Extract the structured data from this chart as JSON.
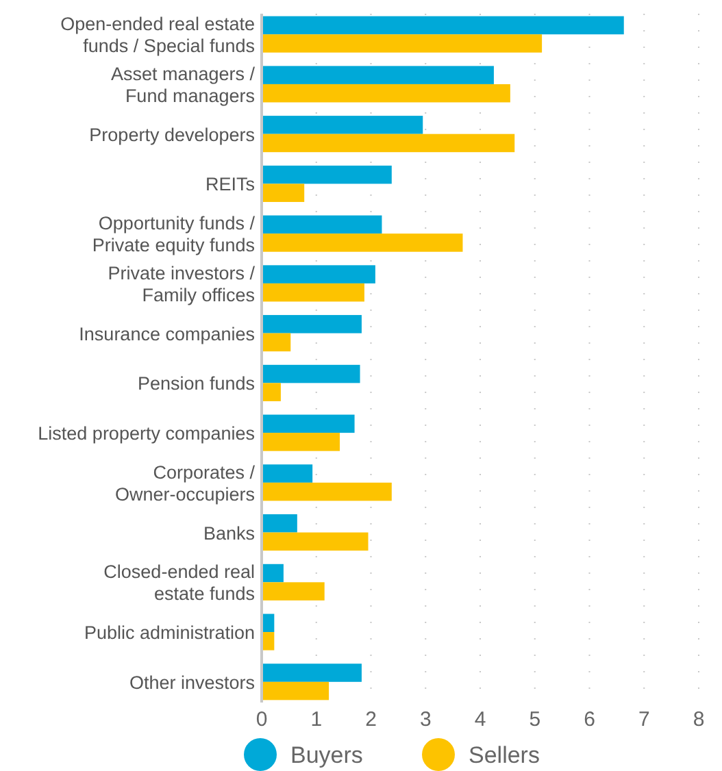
{
  "chart_data": {
    "type": "bar",
    "orientation": "horizontal",
    "categories": [
      "Open-ended real estate\nfunds / Special funds",
      "Asset managers /\nFund managers",
      "Property developers",
      "REITs",
      "Opportunity funds /\nPrivate equity funds",
      "Private investors /\nFamily offices",
      "Insurance companies",
      "Pension funds",
      "Listed property companies",
      "Corporates /\nOwner-occupiers",
      "Banks",
      "Closed-ended real\nestate funds",
      "Public administration",
      "Other investors"
    ],
    "series": [
      {
        "name": "Buyers",
        "color": "#00a9d8",
        "values": [
          6.63,
          4.25,
          2.95,
          2.38,
          2.2,
          2.08,
          1.83,
          1.8,
          1.7,
          0.93,
          0.65,
          0.4,
          0.23,
          1.83
        ]
      },
      {
        "name": "Sellers",
        "color": "#fdc300",
        "values": [
          5.13,
          4.55,
          4.63,
          0.78,
          3.68,
          1.88,
          0.53,
          0.35,
          1.43,
          2.38,
          1.95,
          1.15,
          0.23,
          1.23
        ]
      }
    ],
    "xlim": [
      0,
      8
    ],
    "xticks": [
      0,
      1,
      2,
      3,
      4,
      5,
      6,
      7,
      8
    ],
    "grid": "x",
    "legend": "bottom"
  }
}
